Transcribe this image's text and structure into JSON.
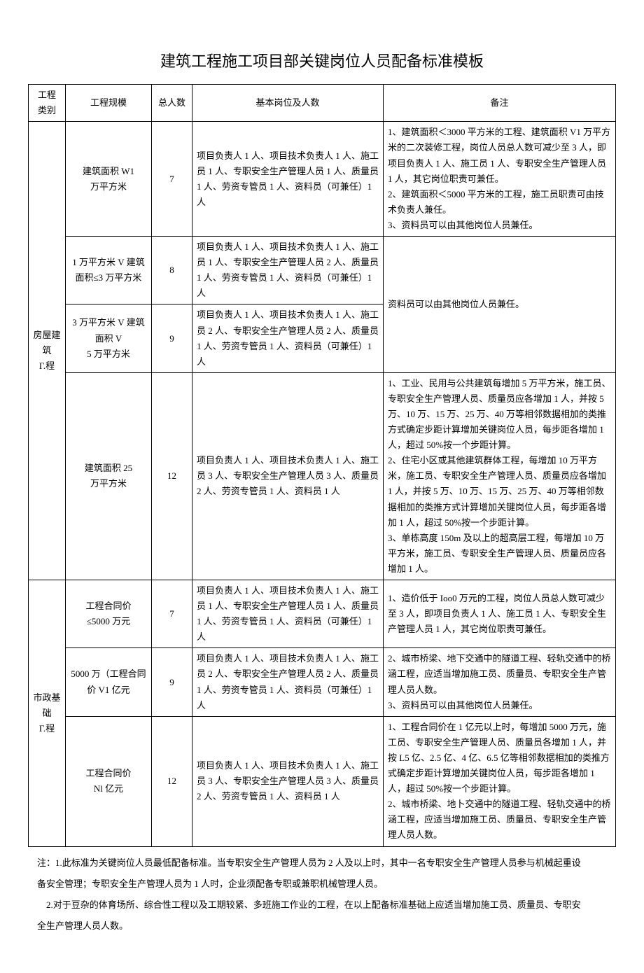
{
  "title": "建筑工程施工项目部关键岗位人员配备标准模板",
  "headers": {
    "category": "工程\n类别",
    "scale": "工程规模",
    "total": "总人数",
    "positions": "基本岗位及人数",
    "remark": "备注"
  },
  "rows": [
    {
      "category": "房屋建筑\nΓ.程",
      "cat_rowspan": 4,
      "scale": "建筑面积 W1\n万平方米",
      "total": "7",
      "positions": "项目负责人 1 人、项目技术负责人 1 人、施工员 1 人、专职安全生产管理人员 1 人、质量员 1 人、劳资专管员 1 人、资料员（可兼任）1 人",
      "remark": "1、建筑面积＜3000 平方米的工程、建筑面积 V1 万平方米的二次装修工程，岗位人员总人数可减少至 3 人，即项目负责人 1 人、施工员 1 人、专职安全生产管理人员 1 人，其它岗位职责可兼任。\n2、建筑面积＜5000 平方米的工程，施工员职责可由技术负责人兼任。\n3、资料员可以由其他岗位人员兼任。",
      "remark_rowspan": 1
    },
    {
      "scale": "1 万平方米 V 建筑面积≤3 万平方米",
      "total": "8",
      "positions": "项目负责人 1 人、项目技术负责人 1 人、施工员 1 人、专职安全生产管理人员 2 人、质量员 1 人、劳资专管员 1 人、资料员（可兼任）1 人",
      "remark": "资料员可以由其他岗位人员兼任。",
      "remark_rowspan": 2
    },
    {
      "scale": "3 万平方米 V 建筑面积 V\n5 万平方米",
      "total": "9",
      "positions": "项目负责人 1 人、项目技术负责人 1 人、施工员 2 人、专职安全生产管理人员 2 人、质量员 1 人、劳资专管员 1 人、资料员（可兼任）1 人"
    },
    {
      "scale": "建筑面积 25\n万平方米",
      "total": "12",
      "positions": "项目负责人 1 人、项目技术负责人 1 人、施工员 3 人、专职安全生产管理人员 3 人、质量员 2 人、劳资专管员 1 人、资料员 1 人",
      "remark": "1、工业、民用与公共建筑每增加 5 万平方米，施工员、专职安全生产管理人员、质量员应各增加 1 人，并按 5 万、10 万、15 万、25 万、40 万等相邻数据相加的类推方式确定步距计算增加关键岗位人员，每步距各增加 1 人，超过 50%按一个步距计算。\n2、住宅小区或其他建筑群体工程，每增加 10 万平方米，施工员、专职安全生产管理人员、质量员应各增加 1 人，并按 5 万、10 万、15 万、25 万、40 万等相邻数据相加的类推方式计算增加关键岗位人员，每步距各增加 1 人，超过 50%按一个步距计算。\n3、单栋高度 150m 及以上的超高层工程，每增加 10 万平方米，施工员、专职安全生产管理人员、质量员应各增加 1 人。",
      "remark_rowspan": 1
    },
    {
      "category": "市政基础\nΓ.程",
      "cat_rowspan": 3,
      "scale": "工程合同价\n≤5000 万元",
      "total": "7",
      "positions": "项目负责人 1 人、项目技术负责人 1 人、施工员 1 人、专职安全生产管理人员 1 人、质量员 1 人、劳资专管员 1 人、资料员（可兼任）1 人",
      "remark": "1、造价低于 Ioo0 万元的工程，岗位人员总人数可减少至 3 人，即项目负责人 1 人、施工员 1 人、专职安全生产管理人员 1 人，其它岗位职责可兼任。",
      "remark_rowspan": 1
    },
    {
      "scale": "5000 万（工程合同价 V1 亿元",
      "total": "9",
      "positions": "项目负责人 1 人、项目技术负责人 1 人、施工员 2 人、专职安全生产管理人员 2 人、质量员 1 人、劳资专管员 1 人、资料员（可兼任）1 人",
      "remark": "2、城市桥梁、地下交通中的隧道工程、轻轨交通中的桥涵工程，应适当增加施工员、质量员、专职安全生产管理人员人数。\n3、资料员可以由其他岗位人员兼任。",
      "remark_rowspan": 1
    },
    {
      "scale": "工程合同价\nNl 亿元",
      "total": "12",
      "positions": "项目负责人 1 人、项目技术负责人 1 人、施工员 3 人、专职安全生产管理人员 3 人、质量员 2 人、劳资专管员 1 人、资料员 1 人",
      "remark": "1、工程合同价在 1 亿元以上时，每增加 5000 万元，施工员、专职安全生产管理人员、质量员各增加 1 人，并按 L5 亿、2.5 亿、4 亿、6.5 亿等相邻数据相加的类推方式确定步距计算增加关键岗位人员，每步距各增加 1 人，超过 50%按一个步距计算。\n2、城市桥梁、地卜交通中的隧道工程、轻轨交通中的桥涵工程，应适当增加施工员、质量员、专职安全生产管理人员人数。",
      "remark_rowspan": 1
    }
  ],
  "footnotes": [
    "注：1.此标准为关键岗位人员最低配备标准。当专职安全生产管理人员为 2 人及以上时，其中一名专职安全生产管理人员参与机械起重设",
    "备安全管理；专职安全生产管理人员为 1 人时，企业须配备专职或兼职机械管理人员。",
    "2.对于豆杂的体育场所、综合性工程以及工期较紧、多班施工作业的工程，在以上配备标准基础上应适当增加施工员、质量员、专职安",
    "全生产管理人员人数。"
  ]
}
